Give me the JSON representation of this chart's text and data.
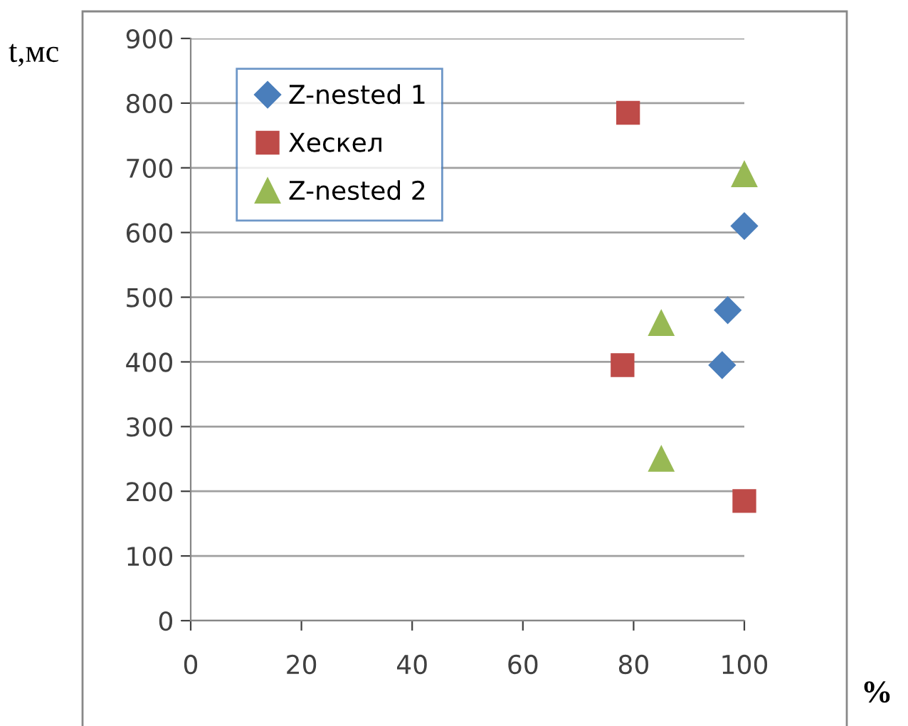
{
  "chart_data": {
    "type": "scatter",
    "ylabel": "t,мс",
    "xlabel": "%",
    "series": [
      {
        "name": "Z-nested 1",
        "color": "#4a7ebb",
        "marker": "diamond",
        "x": [
          100,
          97,
          96
        ],
        "values": [
          610,
          480,
          395
        ]
      },
      {
        "name": "Хескел",
        "color": "#be4b48",
        "marker": "square",
        "x": [
          79,
          78,
          100
        ],
        "values": [
          785,
          395,
          185
        ]
      },
      {
        "name": "Z-nested 2",
        "color": "#98b954",
        "marker": "triangle",
        "x": [
          100,
          85,
          85
        ],
        "values": [
          690,
          460,
          250
        ]
      }
    ],
    "xlim": [
      0,
      100
    ],
    "xticks": [
      0,
      20,
      40,
      60,
      80,
      100
    ],
    "ylim": [
      0,
      900
    ],
    "yticks": [
      0,
      100,
      200,
      300,
      400,
      500,
      600,
      700,
      800,
      900
    ],
    "grid": "y",
    "legend": "top left"
  }
}
